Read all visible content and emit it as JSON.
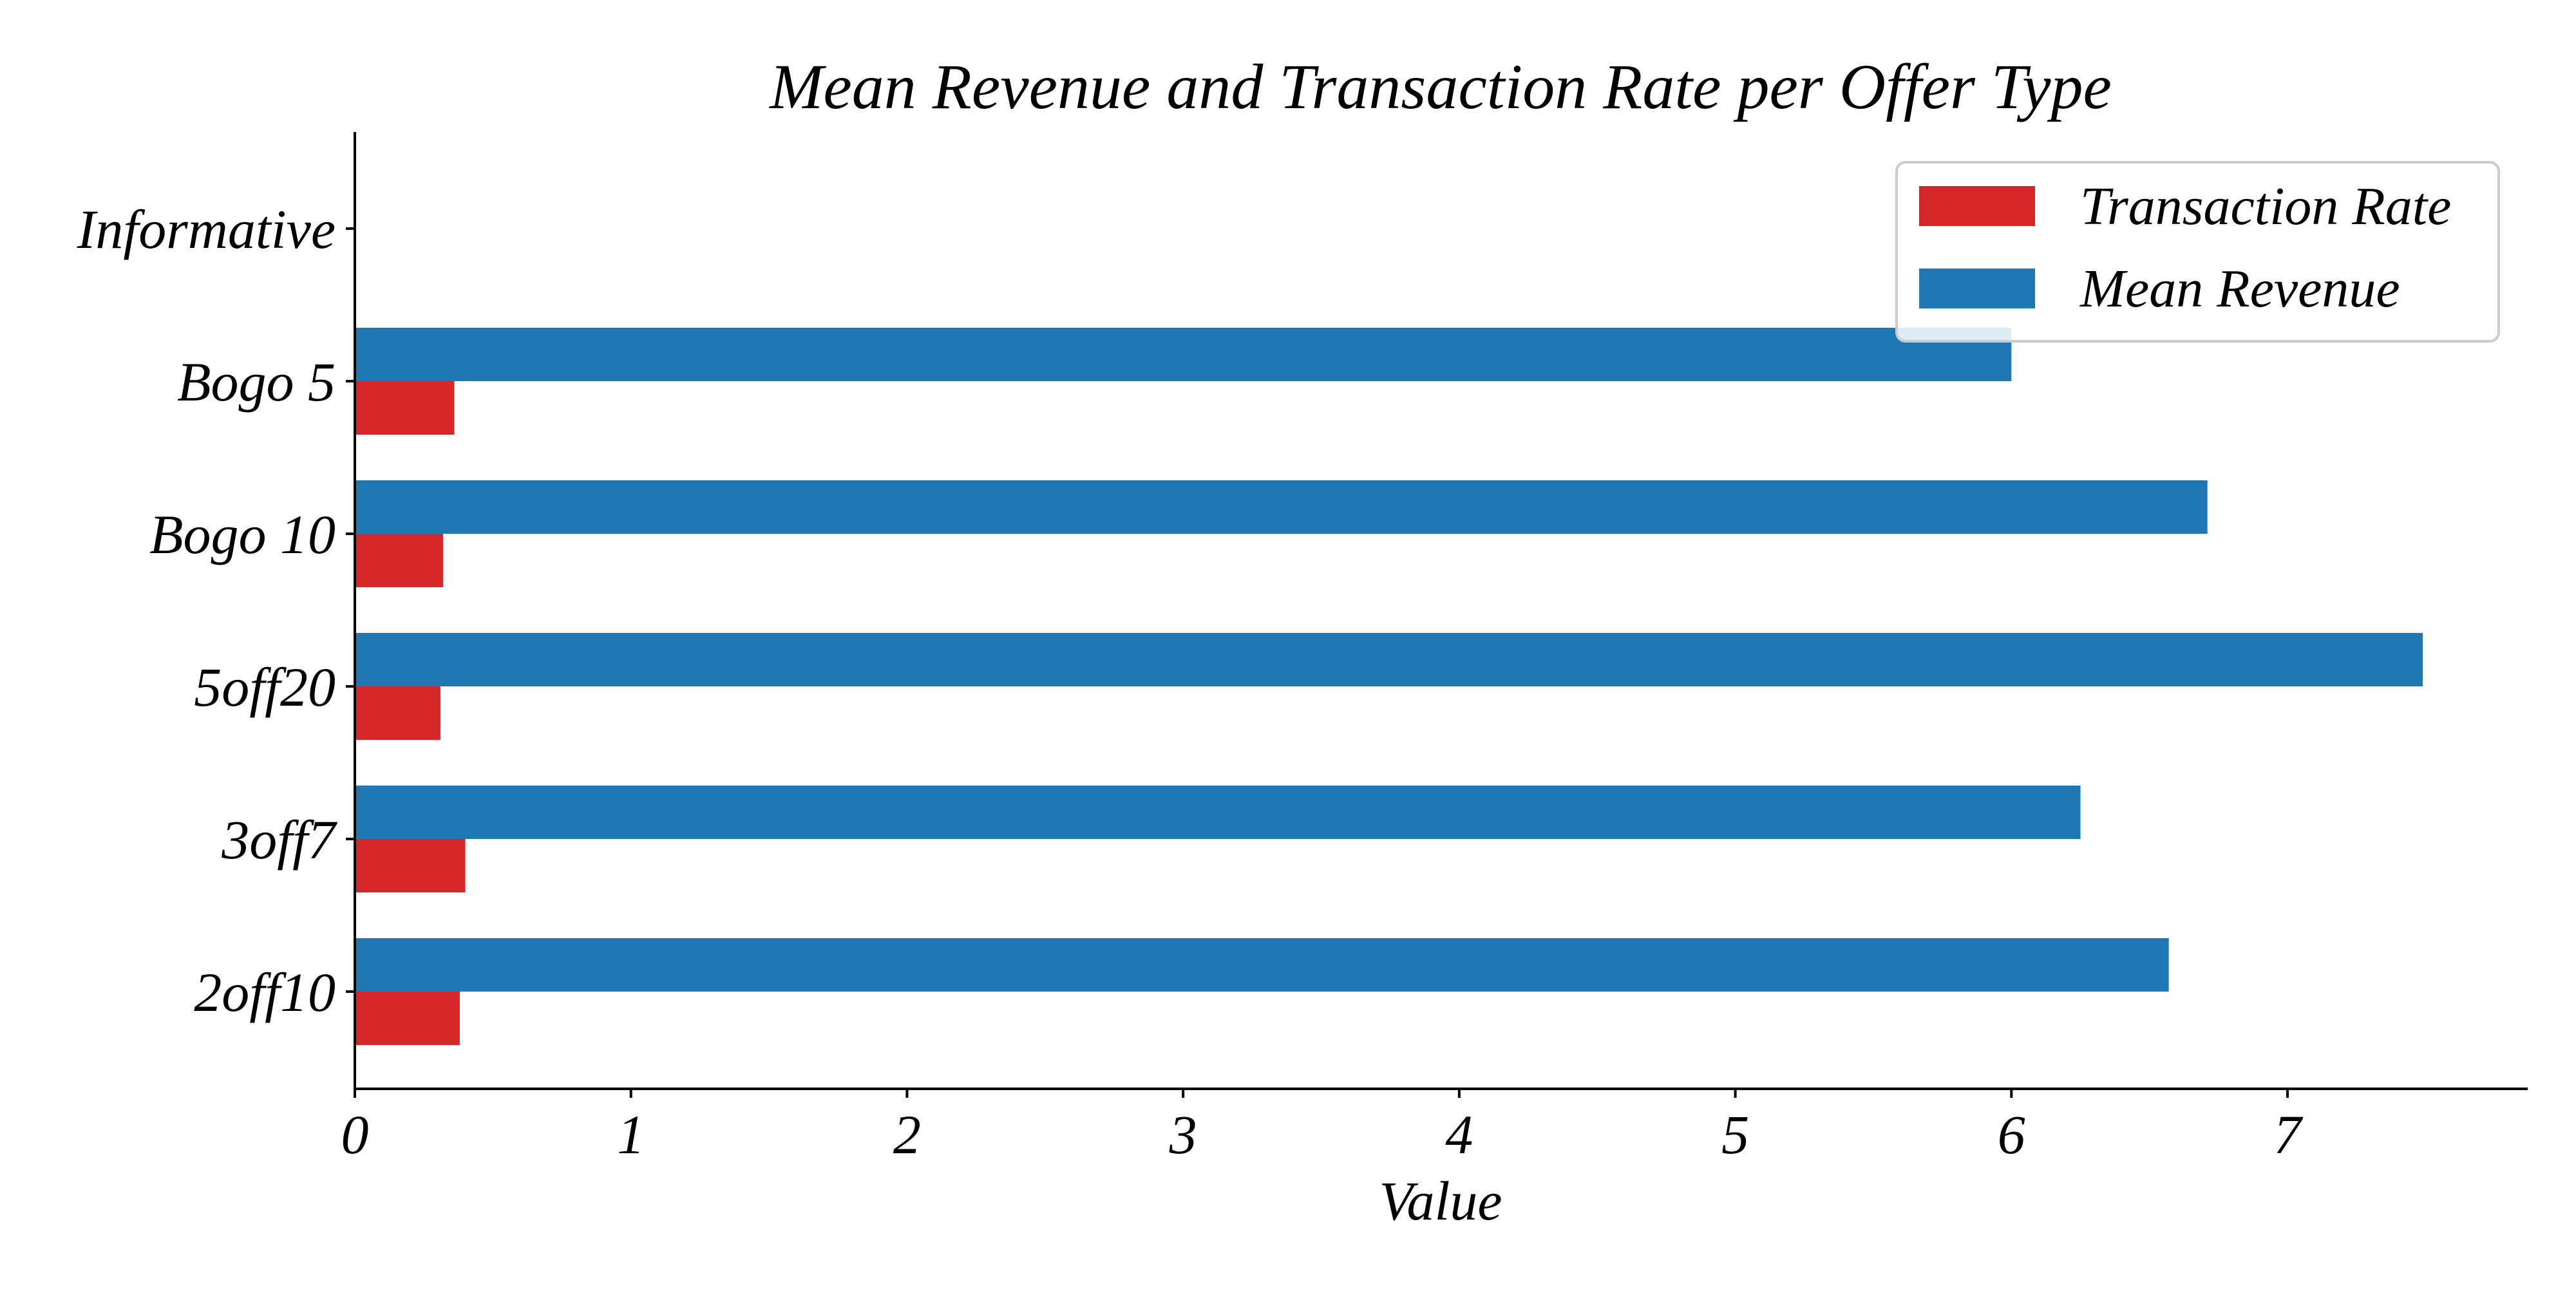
{
  "chart_data": {
    "type": "bar",
    "orientation": "horizontal",
    "title": "Mean Revenue and Transaction Rate per Offer Type",
    "xlabel": "Value",
    "ylabel": "",
    "categories": [
      "2off10",
      "3off7",
      "5off20",
      "Bogo 10",
      "Bogo 5",
      "Informative"
    ],
    "series": [
      {
        "name": "Mean Revenue",
        "color": "#1f77b4",
        "values": [
          6.57,
          6.25,
          7.49,
          6.71,
          6.0,
          0
        ]
      },
      {
        "name": "Transaction Rate",
        "color": "#d62728",
        "values": [
          0.38,
          0.4,
          0.31,
          0.32,
          0.36,
          0
        ]
      }
    ],
    "xlim": [
      0,
      7.87
    ],
    "xticks": [
      "0",
      "1",
      "2",
      "3",
      "4",
      "5",
      "6",
      "7"
    ],
    "grid": false,
    "legend": {
      "placement": "top-right",
      "entries": [
        "Transaction Rate",
        "Mean Revenue"
      ]
    }
  }
}
